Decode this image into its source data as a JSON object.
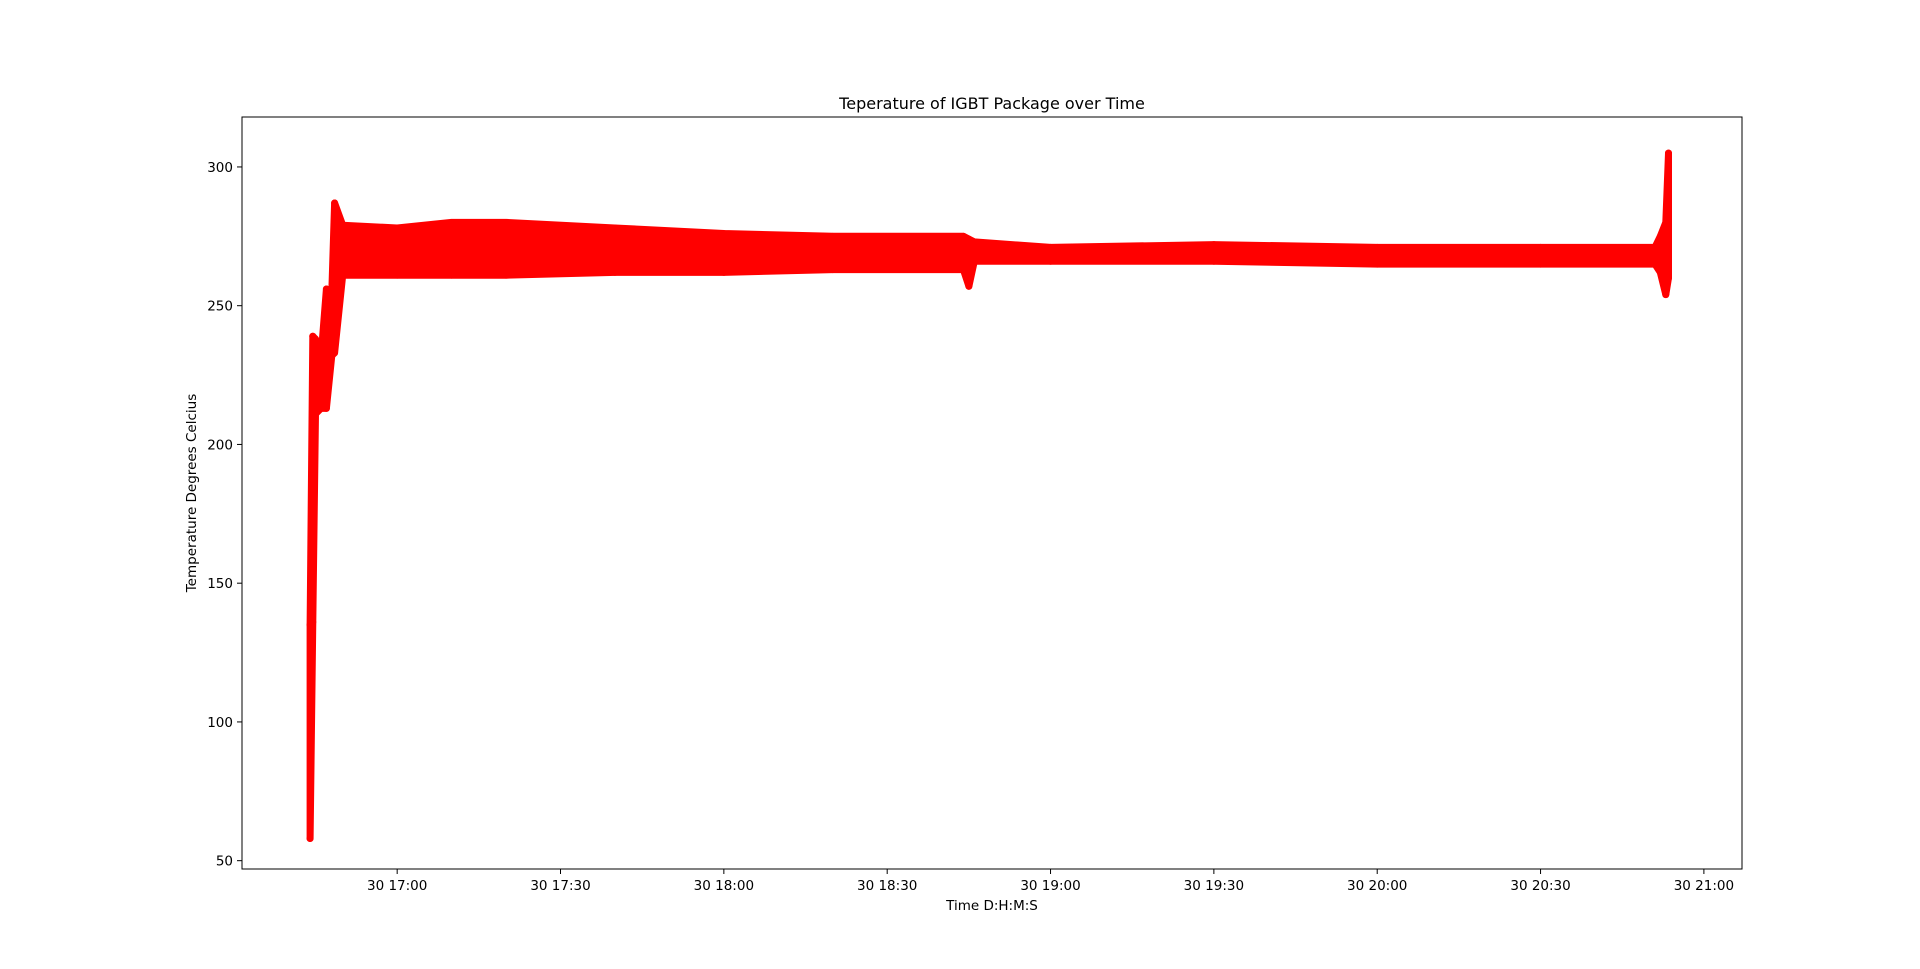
{
  "chart_data": {
    "type": "line",
    "title": "Teperature of IGBT Package over Time",
    "xlabel": "Time D:H:M:S",
    "ylabel": "Temperature Degrees Celcius",
    "x_axis": {
      "ticks": [
        {
          "t": "30 17:00",
          "label": "30 17:00"
        },
        {
          "t": "30 17:30",
          "label": "30 17:30"
        },
        {
          "t": "30 18:00",
          "label": "30 18:00"
        },
        {
          "t": "30 18:30",
          "label": "30 18:30"
        },
        {
          "t": "30 19:00",
          "label": "30 19:00"
        },
        {
          "t": "30 19:30",
          "label": "30 19:30"
        },
        {
          "t": "30 20:00",
          "label": "30 20:00"
        },
        {
          "t": "30 20:30",
          "label": "30 20:30"
        },
        {
          "t": "30 21:00",
          "label": "30 21:00"
        }
      ],
      "xlim": [
        "30 16:31:30",
        "30 21:07"
      ]
    },
    "y_axis": {
      "ticks": [
        50,
        100,
        150,
        200,
        250,
        300
      ],
      "ylim": [
        47,
        318
      ]
    },
    "grid": false,
    "series": [
      {
        "color": "#ff0000",
        "marker": "circle",
        "band": [
          {
            "x": "30 16:44:00",
            "low": 58,
            "high": 135
          },
          {
            "x": "30 16:44:30",
            "low": 136,
            "high": 239
          },
          {
            "x": "30 16:45:00",
            "low": 211,
            "high": 238
          },
          {
            "x": "30 16:46:00",
            "low": 213,
            "high": 231
          },
          {
            "x": "30 16:47:00",
            "low": 213,
            "high": 256
          },
          {
            "x": "30 16:48:00",
            "low": 232,
            "high": 255
          },
          {
            "x": "30 16:48:30",
            "low": 233,
            "high": 287
          },
          {
            "x": "30 16:50:00",
            "low": 261,
            "high": 279
          },
          {
            "x": "30 17:00:00",
            "low": 261,
            "high": 278
          },
          {
            "x": "30 17:10:00",
            "low": 261,
            "high": 280
          },
          {
            "x": "30 17:20:00",
            "low": 261,
            "high": 280
          },
          {
            "x": "30 17:40:00",
            "low": 262,
            "high": 278
          },
          {
            "x": "30 18:00:00",
            "low": 262,
            "high": 276
          },
          {
            "x": "30 18:20:00",
            "low": 263,
            "high": 275
          },
          {
            "x": "30 18:44:00",
            "low": 263,
            "high": 275
          },
          {
            "x": "30 18:45:00",
            "low": 257,
            "high": 274
          },
          {
            "x": "30 18:46:00",
            "low": 266,
            "high": 273
          },
          {
            "x": "30 19:00:00",
            "low": 266,
            "high": 271
          },
          {
            "x": "30 19:30:00",
            "low": 266,
            "high": 272
          },
          {
            "x": "30 20:00:00",
            "low": 265,
            "high": 271
          },
          {
            "x": "30 20:30:00",
            "low": 265,
            "high": 271
          },
          {
            "x": "30 20:51:00",
            "low": 265,
            "high": 271
          },
          {
            "x": "30 20:52:00",
            "low": 262,
            "high": 275
          },
          {
            "x": "30 20:53:00",
            "low": 254,
            "high": 280
          },
          {
            "x": "30 20:53:30",
            "low": 260,
            "high": 305
          }
        ]
      }
    ]
  }
}
